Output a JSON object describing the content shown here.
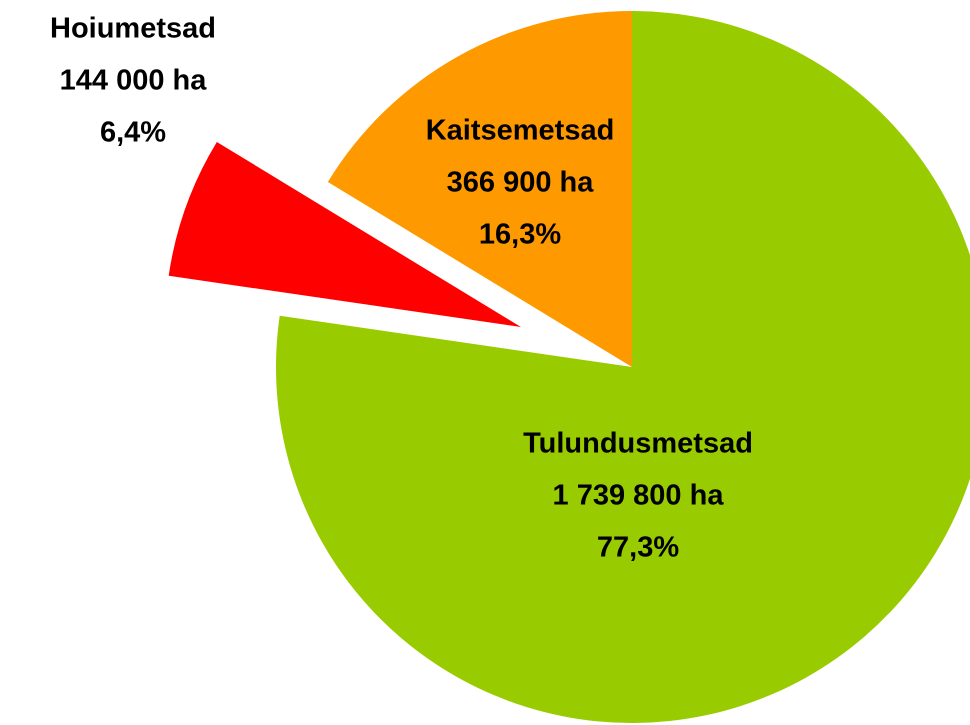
{
  "chart_data": {
    "type": "pie",
    "categories": [
      "Tulundusmetsad",
      "Hoiumetsad",
      "Kaitsemetsad"
    ],
    "values": [
      77.3,
      6.4,
      16.3
    ],
    "value_labels": [
      "77,3%",
      "6,4%",
      "16,3%"
    ],
    "area_labels": [
      "1 739 800 ha",
      "144 000 ha",
      "366 900 ha"
    ],
    "colors": [
      "#99cc00",
      "#ff0000",
      "#ff9900"
    ],
    "exploded": [
      false,
      true,
      false
    ]
  }
}
